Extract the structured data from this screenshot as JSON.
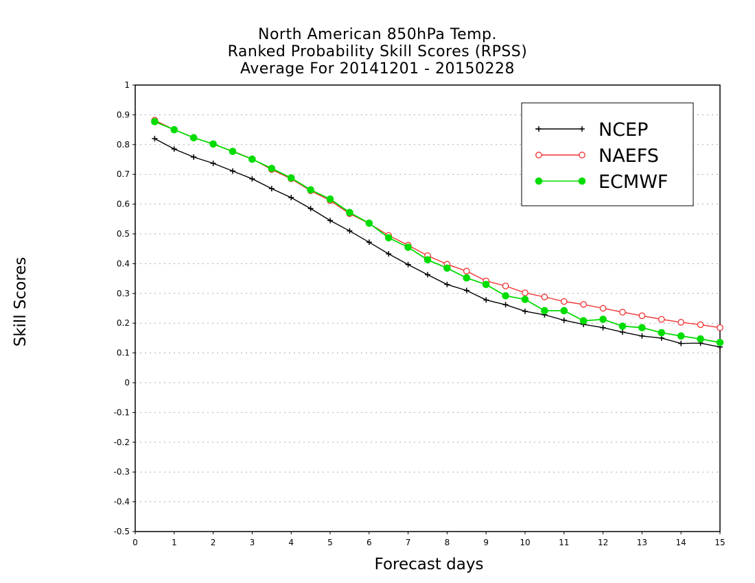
{
  "chart_data": {
    "type": "line",
    "title_lines": [
      "North American 850hPa Temp.",
      "Ranked Probability Skill Scores (RPSS)",
      "Average For 20141201 - 20150228"
    ],
    "xlabel": "Forecast days",
    "ylabel": "Skill Scores",
    "xlim": [
      0,
      15
    ],
    "ylim": [
      -0.5,
      1
    ],
    "x_ticks": [
      "0",
      "1",
      "2",
      "3",
      "4",
      "5",
      "6",
      "7",
      "8",
      "9",
      "10",
      "11",
      "12",
      "13",
      "14",
      "15"
    ],
    "y_ticks": [
      "1",
      "0.9",
      "0.8",
      "0.7",
      "0.6",
      "0.5",
      "0.4",
      "0.3",
      "0.2",
      "0.1",
      "0",
      "-0.1",
      "-0.2",
      "-0.3",
      "-0.4",
      "-0.5"
    ],
    "grid": "dotted horizontal",
    "legend_position": "top-right",
    "x": [
      0.5,
      1,
      1.5,
      2,
      2.5,
      3,
      3.5,
      4,
      4.5,
      5,
      5.5,
      6,
      6.5,
      7,
      7.5,
      8,
      8.5,
      9,
      9.5,
      10,
      10.5,
      11,
      11.5,
      12,
      12.5,
      13,
      13.5,
      14,
      14.5,
      15
    ],
    "series": [
      {
        "name": "NCEP",
        "color": "#000000",
        "marker": "plus",
        "values": [
          0.82,
          0.785,
          0.758,
          0.737,
          0.711,
          0.685,
          0.652,
          0.622,
          0.585,
          0.545,
          0.51,
          0.472,
          0.433,
          0.397,
          0.363,
          0.33,
          0.31,
          0.278,
          0.262,
          0.24,
          0.228,
          0.21,
          0.196,
          0.185,
          0.17,
          0.157,
          0.15,
          0.132,
          0.133,
          0.12
        ]
      },
      {
        "name": "NAEFS",
        "color": "#f03030",
        "marker": "open-circle",
        "values": [
          0.882,
          0.85,
          0.824,
          0.801,
          0.778,
          0.752,
          0.716,
          0.685,
          0.645,
          0.612,
          0.568,
          0.535,
          0.495,
          0.462,
          0.427,
          0.398,
          0.375,
          0.342,
          0.325,
          0.302,
          0.288,
          0.273,
          0.263,
          0.25,
          0.237,
          0.225,
          0.213,
          0.203,
          0.195,
          0.185
        ]
      },
      {
        "name": "ECMWF",
        "color": "#00dd00",
        "marker": "filled-circle",
        "values": [
          0.877,
          0.85,
          0.823,
          0.802,
          0.777,
          0.751,
          0.72,
          0.688,
          0.648,
          0.617,
          0.572,
          0.536,
          0.487,
          0.455,
          0.413,
          0.385,
          0.352,
          0.33,
          0.292,
          0.28,
          0.242,
          0.242,
          0.208,
          0.213,
          0.19,
          0.185,
          0.168,
          0.157,
          0.147,
          0.135
        ]
      }
    ]
  }
}
